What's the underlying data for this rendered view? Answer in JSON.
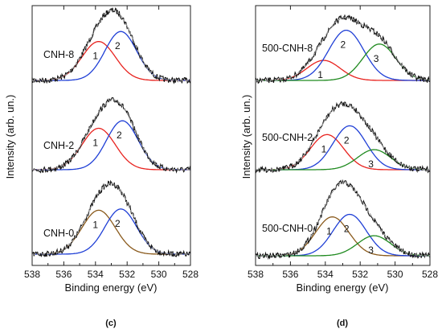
{
  "chart_data": [
    {
      "type": "line",
      "panel_label": "(c)",
      "xlabel": "Binding energy (eV)",
      "ylabel": "Intensity (arb. un.)",
      "xlim": [
        538,
        528
      ],
      "x_ticks": [
        "538",
        "536",
        "534",
        "532",
        "530",
        "528"
      ],
      "y_tick_labels": false,
      "spectra": [
        {
          "name": "CNH-8",
          "components": [
            {
              "label": "1",
              "center": 533.8,
              "height": 0.62,
              "sigma": 1.05,
              "color": "#e8231f"
            },
            {
              "label": "2",
              "center": 532.4,
              "height": 0.78,
              "sigma": 1.0,
              "color": "#1f3fd6"
            }
          ]
        },
        {
          "name": "CNH-2",
          "components": [
            {
              "label": "1",
              "center": 533.8,
              "height": 0.66,
              "sigma": 1.05,
              "color": "#e8231f"
            },
            {
              "label": "2",
              "center": 532.3,
              "height": 0.78,
              "sigma": 1.0,
              "color": "#1f3fd6"
            }
          ]
        },
        {
          "name": "CNH-0",
          "components": [
            {
              "label": "1",
              "center": 533.8,
              "height": 0.7,
              "sigma": 1.05,
              "color": "#8a5a1c"
            },
            {
              "label": "2",
              "center": 532.4,
              "height": 0.72,
              "sigma": 1.0,
              "color": "#1f3fd6"
            }
          ]
        }
      ]
    },
    {
      "type": "line",
      "panel_label": "(d)",
      "xlabel": "Binding energy (eV)",
      "ylabel": "Intensity (arb. un.)",
      "xlim": [
        538,
        528
      ],
      "x_ticks": [
        "538",
        "536",
        "534",
        "532",
        "530",
        "528"
      ],
      "y_tick_labels": false,
      "spectra": [
        {
          "name": "500-CNH-8",
          "components": [
            {
              "label": "1",
              "center": 534.1,
              "height": 0.32,
              "sigma": 0.95,
              "color": "#e8231f"
            },
            {
              "label": "2",
              "center": 532.8,
              "height": 0.8,
              "sigma": 1.0,
              "color": "#1f3fd6"
            },
            {
              "label": "3",
              "center": 530.9,
              "height": 0.58,
              "sigma": 0.95,
              "color": "#1f8a1f"
            }
          ]
        },
        {
          "name": "500-CNH-2",
          "components": [
            {
              "label": "1",
              "center": 533.9,
              "height": 0.56,
              "sigma": 0.95,
              "color": "#e8231f"
            },
            {
              "label": "2",
              "center": 532.6,
              "height": 0.7,
              "sigma": 0.95,
              "color": "#1f3fd6"
            },
            {
              "label": "3",
              "center": 531.2,
              "height": 0.32,
              "sigma": 0.95,
              "color": "#1f8a1f"
            }
          ]
        },
        {
          "name": "500-CNH-0",
          "components": [
            {
              "label": "1",
              "center": 533.6,
              "height": 0.62,
              "sigma": 0.95,
              "color": "#8a5a1c"
            },
            {
              "label": "2",
              "center": 532.6,
              "height": 0.66,
              "sigma": 0.95,
              "color": "#1f3fd6"
            },
            {
              "label": "3",
              "center": 531.2,
              "height": 0.32,
              "sigma": 0.95,
              "color": "#1f8a1f"
            }
          ]
        }
      ]
    }
  ],
  "colors": {
    "experimental": "#111111",
    "envelope": "#9a9a9a",
    "axis": "#222222"
  }
}
